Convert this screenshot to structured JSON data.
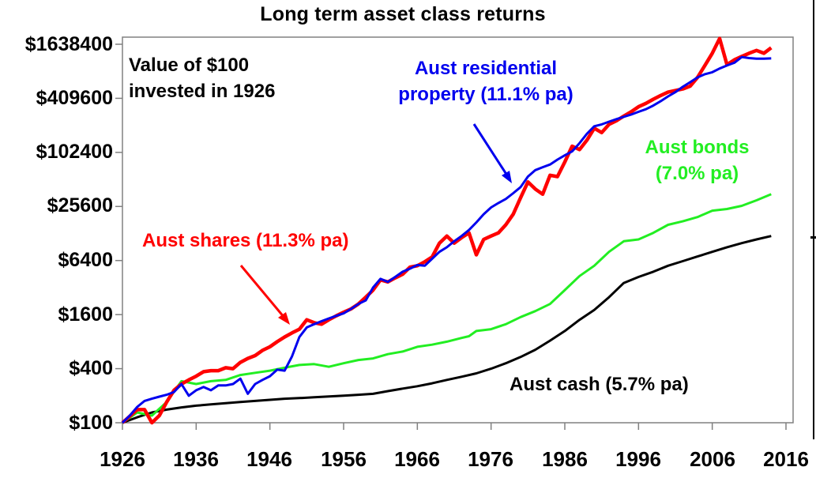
{
  "chart": {
    "title": "Long term asset class returns",
    "annotation": [
      "Value of $100",
      "invested in 1926"
    ],
    "y_tick_labels": [
      "$1638400",
      "$409600",
      "$102400",
      "$25600",
      "$6400",
      "$1600",
      "$400",
      "$100"
    ],
    "x_tick_labels": [
      "1926",
      "1936",
      "1946",
      "1956",
      "1966",
      "1976",
      "1986",
      "1996",
      "2006",
      "2016"
    ],
    "series_labels": {
      "property": [
        "Aust residential",
        "property (11.1% pa)"
      ],
      "shares": "Aust shares (11.3% pa)",
      "bonds": [
        "Aust bonds",
        "(7.0% pa)"
      ],
      "cash": "Aust cash (5.7% pa)"
    },
    "colors": {
      "shares": "#ff0000",
      "property": "#0000ee",
      "bonds": "#22ee22",
      "cash": "#000000",
      "axis": "#808080"
    }
  },
  "chart_data": {
    "type": "line",
    "title": "Long term asset class returns",
    "subtitle": "Value of $100 invested in 1926",
    "xlabel": "",
    "ylabel": "",
    "y_scale": "log4",
    "ylim": [
      100,
      1638400
    ],
    "xlim": [
      1926,
      2016
    ],
    "y_ticks": [
      100,
      400,
      1600,
      6400,
      25600,
      102400,
      409600,
      1638400
    ],
    "x_ticks": [
      1926,
      1936,
      1946,
      1956,
      1966,
      1976,
      1986,
      1996,
      2006,
      2016
    ],
    "grid": false,
    "legend": "inline annotations",
    "series": [
      {
        "name": "Aust shares (11.3% pa)",
        "color": "#ff0000",
        "x": [
          1926,
          1928,
          1929,
          1930,
          1931,
          1932,
          1933,
          1934,
          1935,
          1936,
          1937,
          1938,
          1939,
          1940,
          1941,
          1942,
          1943,
          1944,
          1945,
          1946,
          1947,
          1948,
          1949,
          1950,
          1951,
          1952,
          1953,
          1954,
          1955,
          1956,
          1957,
          1958,
          1959,
          1960,
          1961,
          1962,
          1963,
          1964,
          1965,
          1966,
          1967,
          1968,
          1969,
          1970,
          1971,
          1972,
          1973,
          1974,
          1975,
          1976,
          1977,
          1978,
          1979,
          1980,
          1981,
          1982,
          1983,
          1984,
          1985,
          1986,
          1987,
          1988,
          1989,
          1990,
          1991,
          1992,
          1993,
          1994,
          1995,
          1996,
          1997,
          1998,
          1999,
          2000,
          2001,
          2002,
          2003,
          2004,
          2005,
          2006,
          2007,
          2008,
          2009,
          2010,
          2011,
          2012,
          2013,
          2014
        ],
        "values": [
          100,
          140,
          140,
          100,
          120,
          170,
          230,
          270,
          300,
          330,
          370,
          380,
          380,
          410,
          400,
          470,
          520,
          560,
          640,
          700,
          800,
          900,
          1000,
          1100,
          1400,
          1300,
          1250,
          1400,
          1550,
          1700,
          1850,
          2100,
          2500,
          3000,
          3900,
          3700,
          4100,
          4500,
          5400,
          5600,
          6200,
          7000,
          10000,
          12000,
          10000,
          11500,
          13000,
          7400,
          11000,
          12000,
          13000,
          16000,
          21000,
          32000,
          48000,
          40000,
          35000,
          57000,
          55000,
          80000,
          120000,
          110000,
          140000,
          190000,
          170000,
          210000,
          230000,
          260000,
          290000,
          330000,
          360000,
          400000,
          440000,
          480000,
          500000,
          520000,
          560000,
          700000,
          950000,
          1300000,
          1900000,
          970000,
          1100000,
          1200000,
          1300000,
          1400000,
          1300000,
          1500000
        ]
      },
      {
        "name": "Aust residential property (11.1% pa)",
        "color": "#0000ee",
        "x": [
          1926,
          1927,
          1928,
          1929,
          1930,
          1931,
          1932,
          1933,
          1934,
          1935,
          1936,
          1937,
          1938,
          1939,
          1940,
          1941,
          1942,
          1943,
          1944,
          1945,
          1946,
          1947,
          1948,
          1949,
          1950,
          1951,
          1952,
          1953,
          1954,
          1955,
          1956,
          1957,
          1958,
          1959,
          1960,
          1961,
          1962,
          1963,
          1964,
          1965,
          1966,
          1967,
          1968,
          1969,
          1970,
          1971,
          1972,
          1973,
          1974,
          1975,
          1976,
          1977,
          1978,
          1979,
          1980,
          1981,
          1982,
          1983,
          1984,
          1985,
          1986,
          1987,
          1988,
          1989,
          1990,
          1991,
          1992,
          1993,
          1994,
          1995,
          1996,
          1997,
          1998,
          1999,
          2000,
          2001,
          2002,
          2003,
          2004,
          2005,
          2006,
          2007,
          2008,
          2009,
          2010,
          2011,
          2012,
          2013,
          2014
        ],
        "values": [
          100,
          120,
          150,
          175,
          185,
          195,
          205,
          220,
          270,
          200,
          230,
          250,
          230,
          260,
          260,
          270,
          310,
          210,
          270,
          300,
          330,
          390,
          380,
          550,
          900,
          1150,
          1250,
          1350,
          1450,
          1550,
          1650,
          1850,
          2100,
          2300,
          3200,
          4000,
          3700,
          4200,
          4800,
          5200,
          5700,
          5600,
          6700,
          8000,
          9000,
          10500,
          12000,
          14000,
          17000,
          21000,
          25000,
          28000,
          31000,
          36000,
          42000,
          55000,
          65000,
          70000,
          75000,
          85000,
          95000,
          105000,
          130000,
          165000,
          200000,
          210000,
          225000,
          240000,
          255000,
          270000,
          290000,
          310000,
          340000,
          380000,
          430000,
          480000,
          550000,
          620000,
          700000,
          760000,
          800000,
          880000,
          950000,
          1020000,
          1180000,
          1150000,
          1130000,
          1130000,
          1140000
        ]
      },
      {
        "name": "Aust bonds (7.0% pa)",
        "color": "#22ee22",
        "x": [
          1926,
          1928,
          1930,
          1932,
          1934,
          1936,
          1938,
          1940,
          1942,
          1944,
          1946,
          1948,
          1950,
          1952,
          1954,
          1956,
          1958,
          1960,
          1962,
          1964,
          1966,
          1968,
          1970,
          1972,
          1973,
          1974,
          1976,
          1978,
          1980,
          1982,
          1984,
          1986,
          1988,
          1990,
          1992,
          1994,
          1996,
          1998,
          2000,
          2002,
          2004,
          2006,
          2008,
          2010,
          2012,
          2014
        ],
        "values": [
          100,
          130,
          120,
          170,
          290,
          270,
          290,
          300,
          340,
          360,
          380,
          410,
          440,
          450,
          420,
          460,
          500,
          520,
          580,
          620,
          700,
          740,
          800,
          880,
          920,
          1050,
          1100,
          1250,
          1500,
          1750,
          2100,
          3000,
          4300,
          5600,
          8000,
          10500,
          11000,
          13000,
          16000,
          17500,
          19500,
          23000,
          24000,
          26000,
          30000,
          35000
        ]
      },
      {
        "name": "Aust cash (5.7% pa)",
        "color": "#000000",
        "x": [
          1926,
          1928,
          1930,
          1932,
          1934,
          1936,
          1938,
          1940,
          1942,
          1944,
          1946,
          1948,
          1950,
          1952,
          1954,
          1956,
          1958,
          1960,
          1962,
          1964,
          1966,
          1968,
          1970,
          1972,
          1974,
          1976,
          1978,
          1980,
          1982,
          1984,
          1986,
          1988,
          1990,
          1992,
          1994,
          1996,
          1998,
          2000,
          2002,
          2004,
          2006,
          2008,
          2010,
          2012,
          2014
        ],
        "values": [
          100,
          115,
          130,
          140,
          148,
          155,
          160,
          165,
          170,
          175,
          180,
          185,
          188,
          192,
          196,
          200,
          205,
          210,
          225,
          240,
          255,
          275,
          300,
          325,
          355,
          400,
          460,
          540,
          650,
          820,
          1050,
          1400,
          1800,
          2500,
          3600,
          4200,
          4800,
          5600,
          6300,
          7100,
          8000,
          9000,
          10000,
          11000,
          12000
        ]
      }
    ],
    "annotations": [
      {
        "text": "Value of $100 invested in 1926",
        "color": "#000000"
      },
      {
        "text": "Aust residential property (11.1% pa)",
        "color": "#0000ee",
        "arrow_to_year": 1979
      },
      {
        "text": "Aust shares (11.3% pa)",
        "color": "#ff0000",
        "arrow_to_year": 1949
      },
      {
        "text": "Aust bonds (7.0% pa)",
        "color": "#22ee22"
      },
      {
        "text": "Aust cash (5.7% pa)",
        "color": "#000000"
      }
    ]
  }
}
